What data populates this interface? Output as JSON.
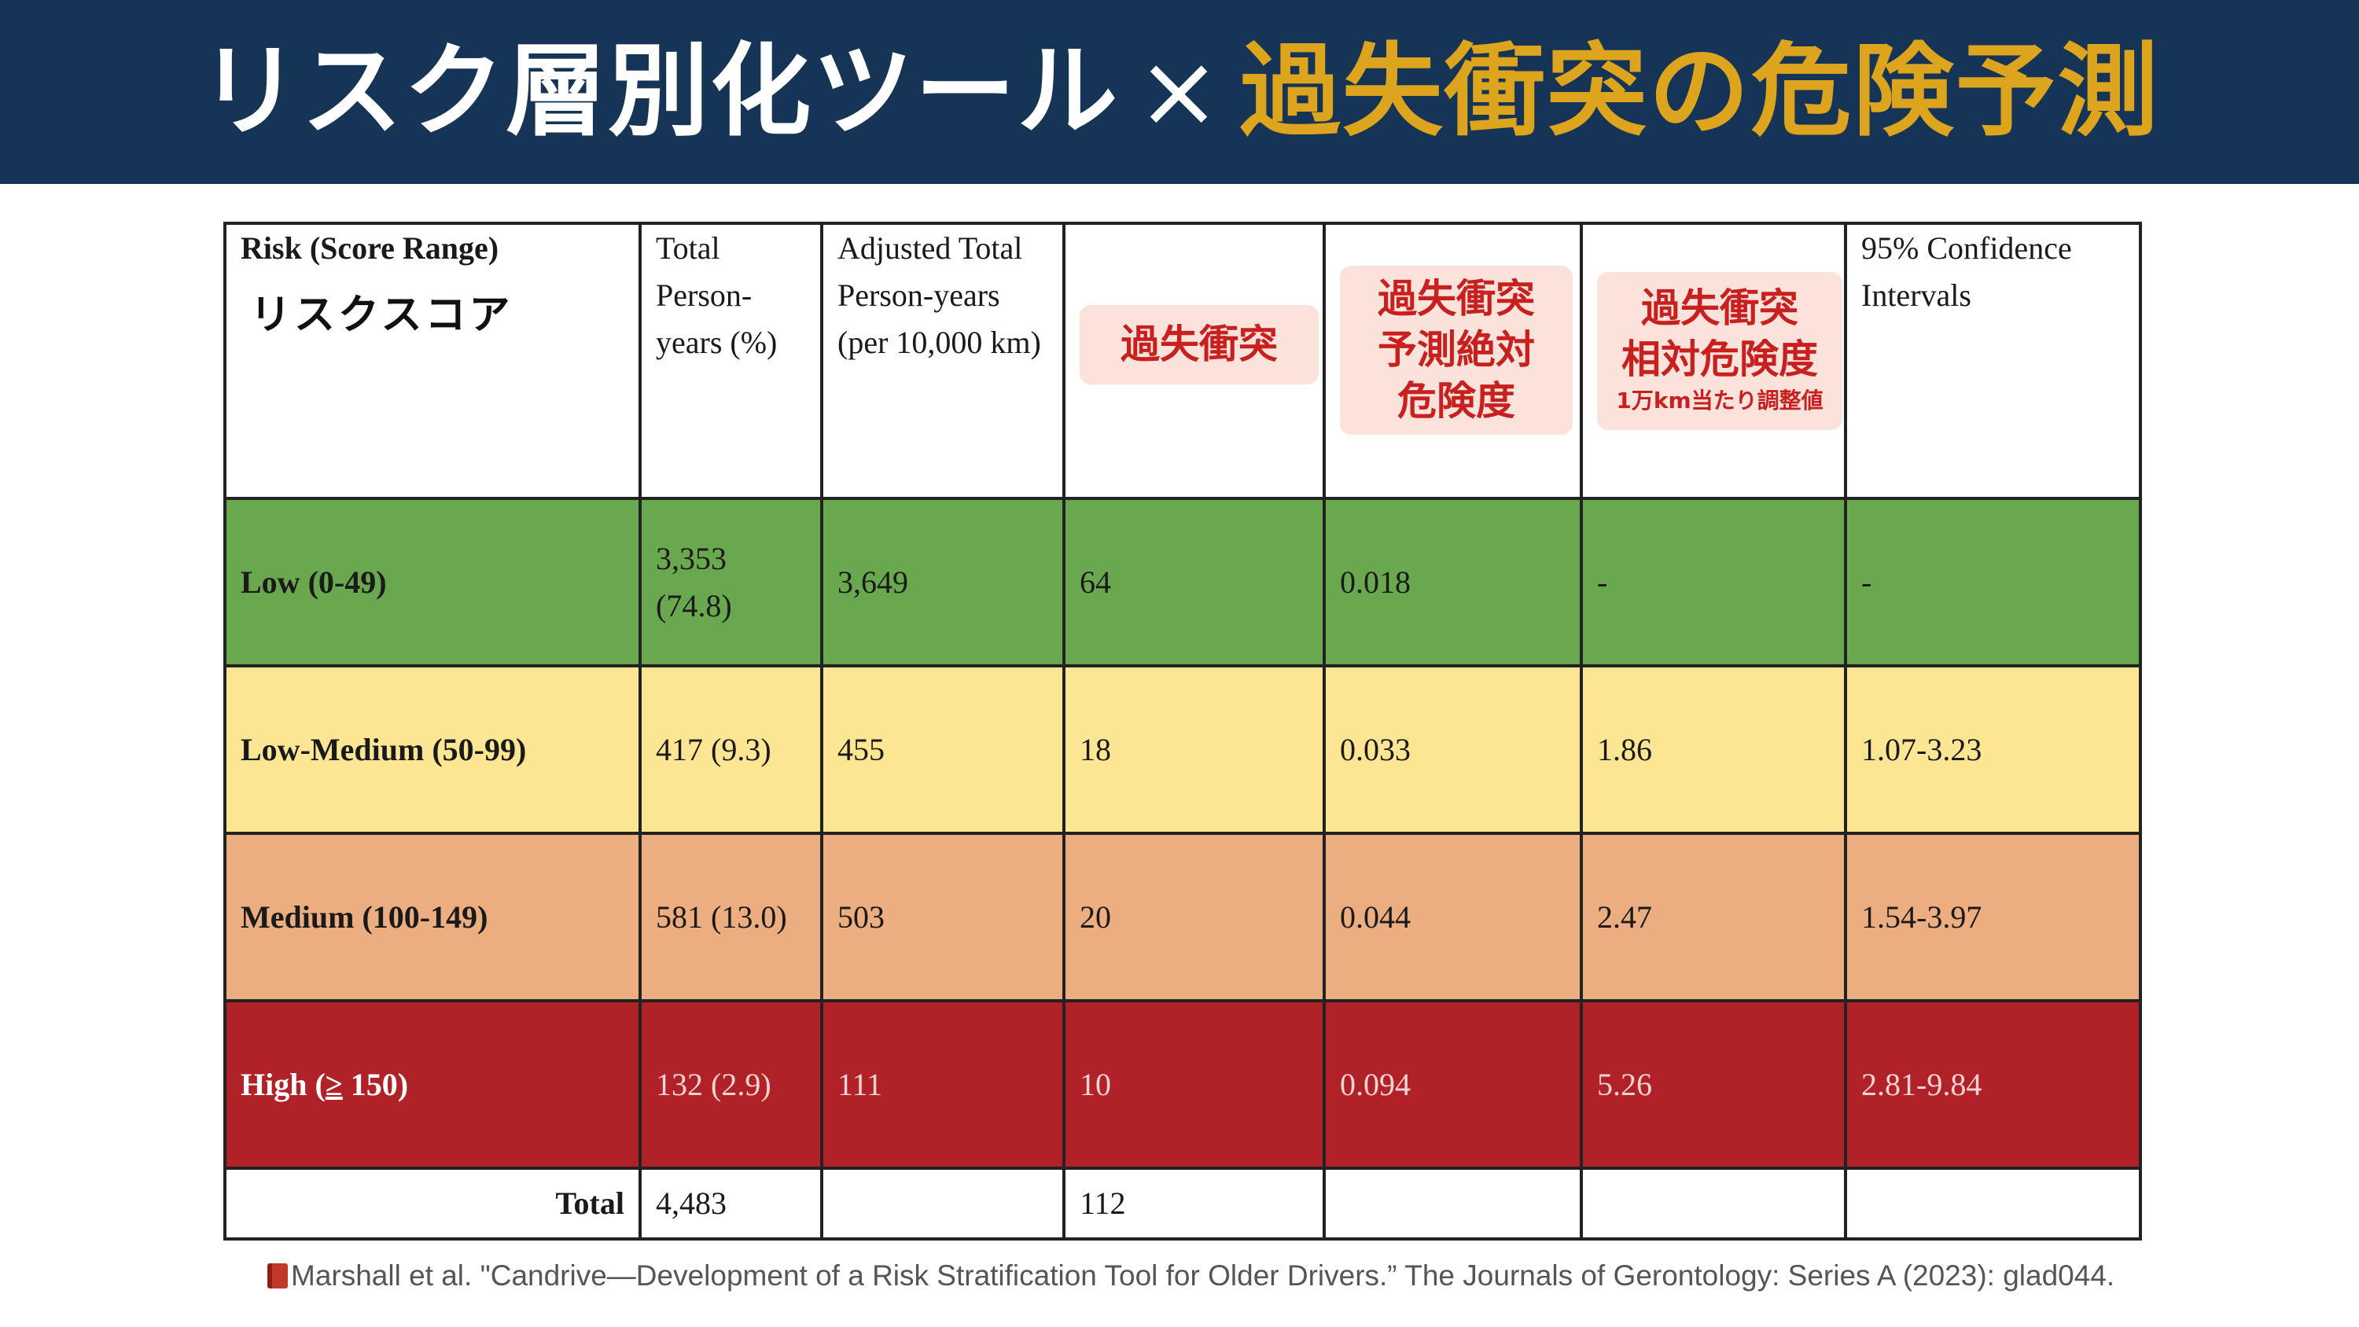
{
  "title": {
    "part1": "リスク層別化ツール",
    "times": "×",
    "part2": "過失衝突の危険予測"
  },
  "table": {
    "headers": {
      "risk": "Risk (Score Range)",
      "risk_jp": "リスクスコア",
      "total_py": "Total Person-years (%)",
      "adjusted_py": "Adjusted Total Person-years (per 10,000 km)",
      "cases_jp": "過失衝突",
      "abs_jp_line1": "過失衝突",
      "abs_jp_line2": "予測絶対",
      "abs_jp_line3": "危険度",
      "rel_jp_line1": "過失衝突",
      "rel_jp_line2": "相対危険度",
      "rel_jp_small": "1万km当たり調整値",
      "ci": "95% Confidence Intervals"
    },
    "rows": [
      {
        "label": "Low (0-49)",
        "total_py_num": "3,353",
        "total_py_pct": "(74.8)",
        "adjusted": "3,649",
        "cases": "64",
        "abs_risk": "0.018",
        "rel_risk": "-",
        "ci": "-"
      },
      {
        "label": "Low-Medium (50-99)",
        "total_py": "417 (9.3)",
        "adjusted": "455",
        "cases": "18",
        "abs_risk": "0.033",
        "rel_risk": "1.86",
        "ci": "1.07-3.23"
      },
      {
        "label": "Medium (100-149)",
        "total_py": "581 (13.0)",
        "adjusted": "503",
        "cases": "20",
        "abs_risk": "0.044",
        "rel_risk": "2.47",
        "ci": "1.54-3.97"
      },
      {
        "label_prefix": "High (",
        "label_ge": "≥",
        "label_suffix": " 150)",
        "total_py": "132 (2.9)",
        "adjusted": "111",
        "cases": "10",
        "abs_risk": "0.094",
        "rel_risk": "5.26",
        "ci": "2.81-9.84"
      }
    ],
    "total": {
      "label": "Total",
      "total_py": "4,483",
      "cases": "112"
    }
  },
  "colors": {
    "banner": "#163456",
    "title_accent": "#dda51d",
    "low": "#6aa84f",
    "low_medium": "#fce694",
    "medium": "#ecad80",
    "high": "#b02227",
    "jp_label_bg": "#fbe3dc",
    "jp_label_text": "#c8201f"
  },
  "citation": {
    "icon": "book-icon",
    "text": "Marshall et al. \"Candrive—Development of a Risk Stratification Tool for Older Drivers.” The Journals of Gerontology: Series A (2023): glad044."
  }
}
